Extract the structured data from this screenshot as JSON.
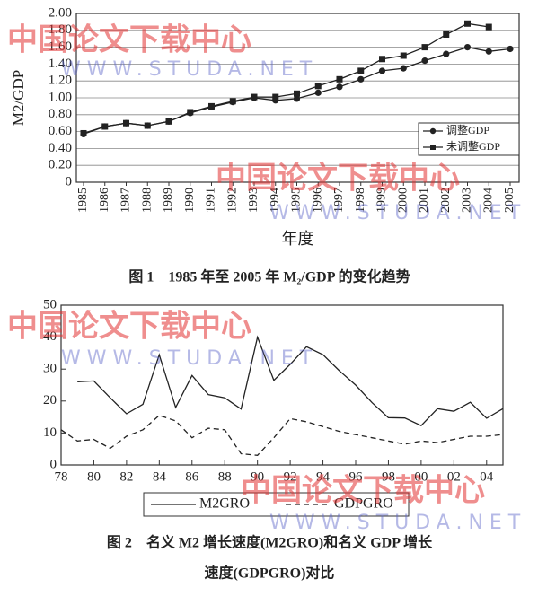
{
  "chart_data": [
    {
      "type": "line",
      "caption": "图 1　1985 年至 2005 年 M₂/GDP 的变化趋势",
      "xlabel": "年度",
      "ylabel": "M2/GDP",
      "categories": [
        "1985",
        "1986",
        "1987",
        "1988",
        "1989",
        "1990",
        "1991",
        "1992",
        "1993",
        "1994",
        "1995",
        "1996",
        "1997",
        "1998",
        "1999",
        "2000",
        "2001",
        "2002",
        "2003",
        "2004",
        "2005"
      ],
      "series": [
        {
          "name": "调整GDP",
          "color": "#222222",
          "marker": "circle",
          "linestyle": "solid",
          "values": [
            0.57,
            0.66,
            0.7,
            0.67,
            0.72,
            0.82,
            0.89,
            0.95,
            1.0,
            0.97,
            0.99,
            1.06,
            1.13,
            1.22,
            1.32,
            1.35,
            1.44,
            1.52,
            1.6,
            1.55,
            1.58
          ]
        },
        {
          "name": "未调整GDP",
          "color": "#222222",
          "marker": "square",
          "linestyle": "solid",
          "values": [
            0.58,
            0.66,
            0.7,
            0.67,
            0.72,
            0.83,
            0.9,
            0.96,
            1.01,
            1.01,
            1.05,
            1.14,
            1.22,
            1.32,
            1.46,
            1.5,
            1.6,
            1.75,
            1.88,
            1.84,
            null
          ]
        }
      ],
      "ylim": [
        0,
        2
      ],
      "yticks": [
        0,
        {
          "value": 0.2,
          "label": "0.20"
        },
        {
          "value": 0.4,
          "label": "0.40"
        },
        {
          "value": 0.6,
          "label": "0.60"
        },
        {
          "value": 0.8,
          "label": "0.80"
        },
        {
          "value": 1.0,
          "label": "1.00"
        },
        {
          "value": 1.2,
          "label": "1.20"
        },
        {
          "value": 1.4,
          "label": "1.40"
        },
        {
          "value": 1.6,
          "label": "1.60"
        },
        {
          "value": 1.8,
          "label": "1.80"
        },
        {
          "value": 2.0,
          "label": "2.00"
        }
      ],
      "grid": true,
      "legend": "right"
    },
    {
      "type": "line",
      "caption": [
        "图 2　名义 M2 增长速度(M2GRO)和名义 GDP 增长",
        "速度(GDPGRO)对比"
      ],
      "x": [
        1978,
        1979,
        1980,
        1981,
        1982,
        1983,
        1984,
        1985,
        1986,
        1987,
        1988,
        1989,
        1990,
        1991,
        1992,
        1993,
        1994,
        1995,
        1996,
        1997,
        1998,
        1999,
        2000,
        2001,
        2002,
        2003,
        2004,
        2005
      ],
      "series": [
        {
          "name": "M2GRO",
          "color": "#222222",
          "marker": "none",
          "linestyle": "solid",
          "values": [
            null,
            26,
            26.3,
            21,
            16,
            19,
            34.5,
            18,
            28,
            22,
            21,
            17.5,
            40,
            26.5,
            31.5,
            37,
            34.5,
            29.5,
            25,
            19.5,
            14.8,
            14.7,
            12.3,
            17.6,
            16.8,
            19.6,
            14.6,
            17.6
          ]
        },
        {
          "name": "GDPGRO",
          "color": "#222222",
          "marker": "none",
          "linestyle": "dashed",
          "values": [
            11,
            7.5,
            8,
            5.2,
            9,
            11,
            15.5,
            13.8,
            8.5,
            11.5,
            11,
            3.5,
            3,
            8.5,
            14.5,
            13.5,
            12,
            10.5,
            9.5,
            8.5,
            7.5,
            6.5,
            7.5,
            7,
            8,
            9,
            9,
            9.5
          ]
        }
      ],
      "xlim": [
        1978,
        2005
      ],
      "xticks": [
        {
          "value": 1978,
          "label": "78"
        },
        {
          "value": 1980,
          "label": "80"
        },
        {
          "value": 1982,
          "label": "82"
        },
        {
          "value": 1984,
          "label": "84"
        },
        {
          "value": 1986,
          "label": "86"
        },
        {
          "value": 1988,
          "label": "88"
        },
        {
          "value": 1990,
          "label": "90"
        },
        {
          "value": 1992,
          "label": "92"
        },
        {
          "value": 1994,
          "label": "94"
        },
        {
          "value": 1996,
          "label": "96"
        },
        {
          "value": 1998,
          "label": "98"
        },
        {
          "value": 2000,
          "label": "00"
        },
        {
          "value": 2002,
          "label": "02"
        },
        {
          "value": 2004,
          "label": "04"
        }
      ],
      "ylim": [
        0,
        50
      ],
      "yticks": [
        0,
        10,
        20,
        30,
        40,
        50
      ],
      "grid": false,
      "legend": "below"
    }
  ],
  "watermark": {
    "text": "中国论文下载中心",
    "url": "WWW.STUDA.NET"
  }
}
